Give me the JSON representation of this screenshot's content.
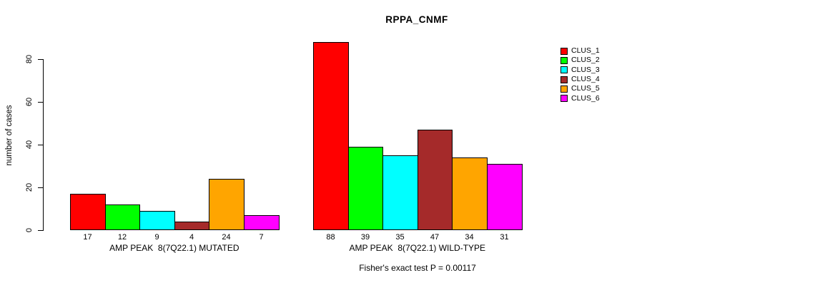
{
  "chart_data": {
    "type": "bar",
    "title": "RPPA_CNMF",
    "xlabel": "",
    "ylabel": "number of cases",
    "ylim": [
      0,
      80
    ],
    "yticks": [
      0,
      20,
      40,
      60,
      80
    ],
    "grid": false,
    "bar_value_labels": true,
    "legend_position": "right",
    "categories": [
      "AMP PEAK  8(7Q22.1) MUTATED",
      "AMP PEAK  8(7Q22.1) WILD-TYPE"
    ],
    "series": [
      {
        "name": "CLUS_1",
        "color": "#FF0000",
        "values": [
          17,
          88
        ]
      },
      {
        "name": "CLUS_2",
        "color": "#00FF00",
        "values": [
          12,
          39
        ]
      },
      {
        "name": "CLUS_3",
        "color": "#00FFFF",
        "values": [
          9,
          35
        ]
      },
      {
        "name": "CLUS_4",
        "color": "#A52A2A",
        "values": [
          4,
          47
        ]
      },
      {
        "name": "CLUS_5",
        "color": "#FFA500",
        "values": [
          24,
          34
        ]
      },
      {
        "name": "CLUS_6",
        "color": "#FF00FF",
        "values": [
          7,
          31
        ]
      }
    ],
    "annotation": "Fisher's exact test P = 0.00117"
  }
}
